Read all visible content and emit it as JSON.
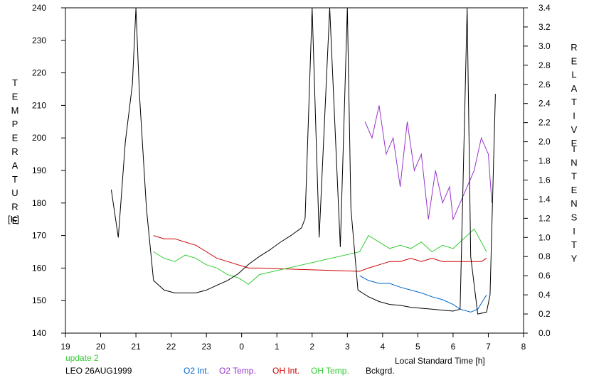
{
  "chart_data": {
    "type": "line",
    "xlabel": "Local Standard Time [h]",
    "ylabel_left": "TEMPERATURE",
    "ylabel_left_unit": "[K]",
    "ylabel_right": "RELATIVE INTENSITY",
    "x_ticks": [
      19,
      20,
      21,
      22,
      23,
      0,
      1,
      2,
      3,
      4,
      5,
      6,
      7,
      8
    ],
    "xlim_hours": [
      19,
      32
    ],
    "y_left_ticks": [
      140,
      150,
      160,
      170,
      180,
      190,
      200,
      210,
      220,
      230,
      240
    ],
    "ylim_left": [
      140,
      240
    ],
    "y_right_ticks": [
      "0.0",
      "0.2",
      "0.4",
      "0.6",
      "0.8",
      "1.0",
      "1.2",
      "1.4",
      "1.6",
      "1.8",
      "2.0",
      "2.2",
      "2.4",
      "2.6",
      "2.8",
      "3.0",
      "3.2",
      "3.4"
    ],
    "ylim_right": [
      0,
      3.4
    ],
    "grid": false,
    "series": [
      {
        "name": "O2 Int.",
        "color": "#0066cc",
        "axis": "right",
        "x": [
          27.35,
          27.6,
          27.9,
          28.2,
          28.5,
          28.8,
          29.1,
          29.4,
          29.7,
          30.0,
          30.2,
          30.5,
          30.7,
          30.95
        ],
        "y": [
          0.6,
          0.55,
          0.52,
          0.52,
          0.48,
          0.45,
          0.42,
          0.38,
          0.35,
          0.3,
          0.25,
          0.22,
          0.25,
          0.4
        ]
      },
      {
        "name": "O2 Temp.",
        "color": "#9933cc",
        "axis": "left",
        "x": [
          27.5,
          27.7,
          27.9,
          28.1,
          28.3,
          28.5,
          28.7,
          28.9,
          29.1,
          29.3,
          29.5,
          29.7,
          29.9,
          30.0,
          30.6,
          30.8,
          31.0,
          31.1
        ],
        "y": [
          205,
          200,
          210,
          195,
          200,
          185,
          205,
          190,
          195,
          175,
          190,
          180,
          185,
          175,
          190,
          200,
          195,
          180
        ]
      },
      {
        "name": "OH Int.",
        "color": "#cc0000",
        "axis": "left",
        "x": [
          21.5,
          21.8,
          22.1,
          22.4,
          22.7,
          23.0,
          23.3,
          23.6,
          23.9,
          24.2,
          24.5,
          27.35,
          27.6,
          27.9,
          28.2,
          28.5,
          28.8,
          29.1,
          29.4,
          29.7,
          30.0,
          30.6,
          30.8,
          30.95
        ],
        "y": [
          170,
          169,
          169,
          168,
          167,
          165,
          163,
          162,
          161,
          160,
          160,
          159,
          160,
          161,
          162,
          162,
          163,
          162,
          163,
          162,
          162,
          162,
          162,
          163
        ]
      },
      {
        "name": "OH Temp.",
        "color": "#33cc33",
        "axis": "left",
        "x": [
          21.5,
          21.8,
          22.1,
          22.4,
          22.7,
          23.0,
          23.3,
          23.6,
          23.9,
          24.2,
          24.5,
          27.35,
          27.6,
          27.9,
          28.2,
          28.5,
          28.8,
          29.1,
          29.4,
          29.7,
          30.0,
          30.6,
          30.8,
          30.95
        ],
        "y": [
          165,
          163,
          162,
          164,
          163,
          161,
          160,
          158,
          157,
          155,
          158,
          165,
          170,
          168,
          166,
          167,
          166,
          168,
          165,
          167,
          166,
          172,
          168,
          165
        ]
      },
      {
        "name": "Bckgrd.",
        "color": "#000000",
        "axis": "right",
        "x": [
          20.3,
          20.5,
          20.7,
          20.9,
          21.0,
          21.1,
          21.3,
          21.5,
          21.8,
          22.1,
          22.4,
          22.7,
          23.0,
          23.3,
          23.6,
          23.9,
          24.2,
          24.5,
          24.8,
          25.1,
          25.4,
          25.7,
          25.8,
          26.0,
          26.2,
          26.5,
          26.8,
          27.0,
          27.1,
          27.3,
          27.6,
          27.9,
          28.2,
          28.5,
          28.8,
          29.1,
          29.4,
          29.7,
          30.0,
          30.2,
          30.4,
          30.5,
          30.7,
          30.95,
          31.05,
          31.2
        ],
        "y": [
          1.5,
          1.0,
          2.0,
          2.6,
          3.4,
          2.5,
          1.3,
          0.55,
          0.45,
          0.42,
          0.42,
          0.42,
          0.45,
          0.5,
          0.55,
          0.62,
          0.72,
          0.8,
          0.87,
          0.95,
          1.02,
          1.1,
          1.2,
          3.4,
          1.0,
          3.4,
          0.9,
          3.4,
          1.3,
          0.45,
          0.38,
          0.33,
          0.3,
          0.29,
          0.27,
          0.26,
          0.25,
          0.24,
          0.23,
          0.25,
          3.4,
          0.8,
          0.2,
          0.22,
          0.4,
          2.5
        ]
      }
    ]
  },
  "footer": {
    "update": "update 2",
    "station": "LEO 26AUG1999"
  }
}
